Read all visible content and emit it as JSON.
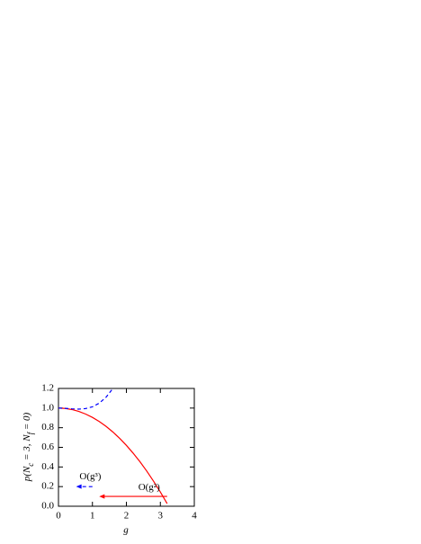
{
  "chart_data": {
    "type": "line",
    "x_label": "g",
    "y_label": [
      "p(N",
      "c",
      " = 3, N",
      "f",
      " = 0)"
    ],
    "x": [
      0,
      0.2,
      0.4,
      0.6,
      0.8,
      1.0,
      1.2,
      1.4,
      1.6,
      1.8,
      2.0,
      2.2,
      2.4,
      2.6,
      2.8,
      3.0,
      3.2
    ],
    "series": [
      {
        "name": "O(g²)",
        "color": "#ff0000",
        "dash": false,
        "values": [
          1,
          0.996,
          0.985,
          0.966,
          0.939,
          0.905,
          0.863,
          0.814,
          0.757,
          0.692,
          0.62,
          0.54,
          0.453,
          0.358,
          0.255,
          0.145,
          0.027
        ]
      },
      {
        "name": "O(g³)",
        "color": "#0000ff",
        "dash": true,
        "values": [
          1,
          0.997,
          0.992,
          0.989,
          0.995,
          1.013,
          1.05,
          1.11,
          1.199,
          null,
          null,
          null,
          null,
          null,
          null,
          null,
          null
        ]
      }
    ],
    "arrows": [
      {
        "series": 0,
        "x_from": 3.2,
        "x_to": 1.2,
        "y": 0.1,
        "label_x": 2.35,
        "label_y": 0.19
      },
      {
        "series": 1,
        "x_from": 1.0,
        "x_to": 0.52,
        "y": 0.2,
        "label_x": 0.62,
        "label_y": 0.3
      }
    ],
    "xlim": [
      0,
      4
    ],
    "ylim": [
      0,
      1.2
    ],
    "xticks": [
      0,
      1,
      2,
      3,
      4
    ],
    "yticks": [
      {
        "value": 0,
        "label": "0.0"
      },
      0.2,
      0.4,
      0.6,
      0.8,
      {
        "value": 1,
        "label": "1.0"
      },
      1.2
    ]
  }
}
